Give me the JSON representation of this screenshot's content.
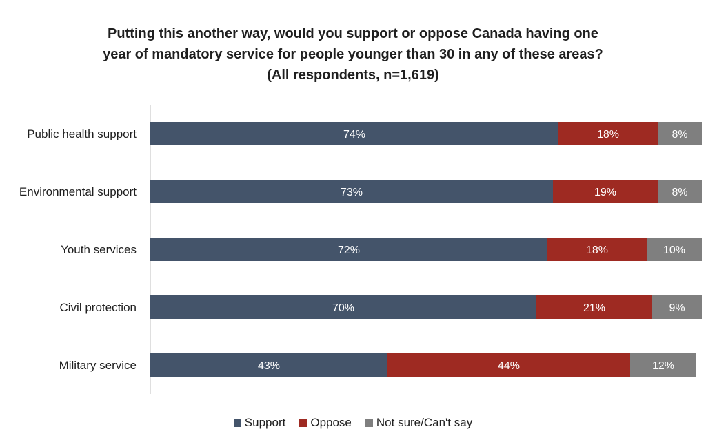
{
  "chart_data": {
    "type": "bar",
    "orientation": "horizontal",
    "stacked": true,
    "title_lines": [
      "Putting this another way, would you support or oppose Canada having one",
      "year of mandatory service for people younger than 30 in any of these areas?",
      "(All respondents, n=1,619)"
    ],
    "categories": [
      "Public health support",
      "Environmental support",
      "Youth services",
      "Civil protection",
      "Military service"
    ],
    "series": [
      {
        "name": "Support",
        "color": "#44546A",
        "values": [
          74,
          73,
          72,
          70,
          43
        ],
        "labels": [
          "74%",
          "73%",
          "72%",
          "70%",
          "43%"
        ]
      },
      {
        "name": "Oppose",
        "color": "#9E2A22",
        "values": [
          18,
          19,
          18,
          21,
          44
        ],
        "labels": [
          "18%",
          "19%",
          "18%",
          "21%",
          "44%"
        ]
      },
      {
        "name": "Not sure/Can't say",
        "color": "#7F7F7F",
        "values": [
          8,
          8,
          10,
          9,
          12
        ],
        "labels": [
          "8%",
          "8%",
          "10%",
          "9%",
          "12%"
        ]
      }
    ],
    "xlim": [
      0,
      100
    ],
    "grid": false,
    "legend_position": "bottom"
  }
}
